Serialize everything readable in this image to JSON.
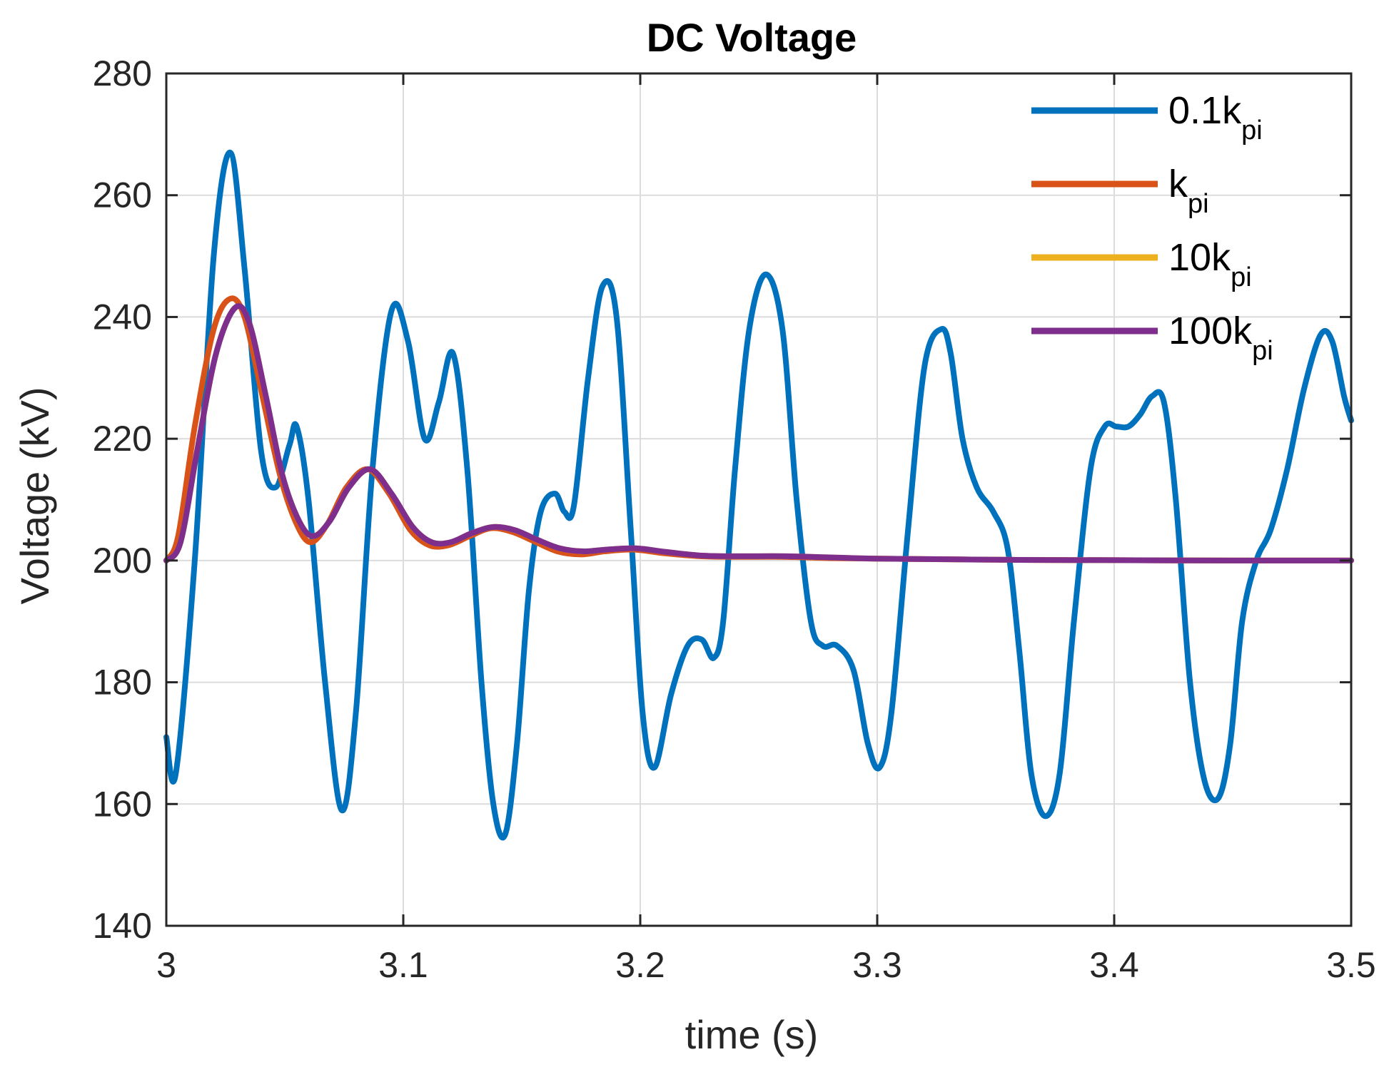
{
  "chart_data": {
    "type": "line",
    "title": "DC Voltage",
    "xlabel": "time (s)",
    "ylabel": "Voltage (kV)",
    "xlim": [
      3,
      3.5
    ],
    "ylim": [
      140,
      280
    ],
    "xticks": [
      3,
      3.1,
      3.2,
      3.3,
      3.4,
      3.5
    ],
    "xtick_labels": [
      "3",
      "3.1",
      "3.2",
      "3.3",
      "3.4",
      "3.5"
    ],
    "yticks": [
      140,
      160,
      180,
      200,
      220,
      240,
      260,
      280
    ],
    "ytick_labels": [
      "140",
      "160",
      "180",
      "200",
      "220",
      "240",
      "260",
      "280"
    ],
    "grid": true,
    "legend_position": "top-right",
    "series": [
      {
        "name": "0.1k_pi",
        "label_main": "0.1k",
        "label_sub": "pi",
        "color": "#0072BD",
        "x": [
          3.0,
          3.004,
          3.012,
          3.02,
          3.027,
          3.033,
          3.04,
          3.046,
          3.052,
          3.055,
          3.06,
          3.067,
          3.074,
          3.08,
          3.087,
          3.095,
          3.102,
          3.109,
          3.115,
          3.121,
          3.127,
          3.133,
          3.138,
          3.143,
          3.148,
          3.153,
          3.158,
          3.164,
          3.168,
          3.172,
          3.178,
          3.184,
          3.19,
          3.196,
          3.201,
          3.206,
          3.213,
          3.22,
          3.226,
          3.231,
          3.235,
          3.24,
          3.246,
          3.253,
          3.26,
          3.266,
          3.272,
          3.277,
          3.283,
          3.29,
          3.296,
          3.301,
          3.306,
          3.313,
          3.32,
          3.327,
          3.331,
          3.336,
          3.342,
          3.349,
          3.355,
          3.36,
          3.365,
          3.371,
          3.377,
          3.383,
          3.39,
          3.396,
          3.401,
          3.406,
          3.411,
          3.416,
          3.421,
          3.426,
          3.432,
          3.438,
          3.444,
          3.449,
          3.454,
          3.46,
          3.466,
          3.473,
          3.48,
          3.487,
          3.492,
          3.497,
          3.5
        ],
        "values": [
          171,
          165,
          200,
          250,
          267,
          248,
          218,
          212,
          219,
          222,
          210,
          180,
          159,
          175,
          215,
          241,
          236,
          220,
          226,
          234,
          215,
          180,
          160,
          155,
          170,
          195,
          208,
          211,
          208,
          209,
          230,
          245,
          240,
          205,
          175,
          166,
          178,
          186,
          187,
          184,
          190,
          215,
          238,
          247,
          238,
          210,
          190,
          186,
          186,
          182,
          170,
          166,
          175,
          205,
          232,
          238,
          234,
          220,
          212,
          208,
          202,
          185,
          165,
          158,
          165,
          190,
          215,
          222,
          222,
          222,
          224,
          227,
          226,
          210,
          180,
          164,
          161,
          170,
          190,
          200,
          205,
          215,
          228,
          237,
          236,
          227,
          223
        ]
      },
      {
        "name": "k_pi",
        "label_main": "k",
        "label_sub": "pi",
        "color": "#D95319",
        "x": [
          3.0,
          3.005,
          3.012,
          3.02,
          3.027,
          3.033,
          3.04,
          3.048,
          3.055,
          3.061,
          3.068,
          3.076,
          3.085,
          3.094,
          3.103,
          3.111,
          3.119,
          3.128,
          3.137,
          3.146,
          3.155,
          3.165,
          3.175,
          3.185,
          3.197,
          3.21,
          3.225,
          3.24,
          3.26,
          3.28,
          3.3,
          3.33,
          3.36,
          3.4,
          3.45,
          3.5
        ],
        "values": [
          200,
          204,
          222,
          238,
          243,
          240,
          228,
          214,
          206,
          203,
          206,
          212,
          215,
          211,
          205,
          202.5,
          202.5,
          204,
          205.3,
          204.7,
          203.2,
          201.5,
          201,
          201.5,
          201.8,
          201.2,
          200.7,
          200.6,
          200.6,
          200.4,
          200.3,
          200.2,
          200.1,
          200.05,
          200,
          200
        ]
      },
      {
        "name": "10k_pi",
        "label_main": "10k",
        "label_sub": "pi",
        "color": "#EDB120",
        "x": [
          3.0,
          3.006,
          3.013,
          3.021,
          3.029,
          3.035,
          3.042,
          3.049,
          3.056,
          3.062,
          3.069,
          3.077,
          3.086,
          3.095,
          3.104,
          3.112,
          3.12,
          3.129,
          3.138,
          3.147,
          3.156,
          3.166,
          3.176,
          3.186,
          3.198,
          3.211,
          3.226,
          3.241,
          3.261,
          3.281,
          3.3,
          3.33,
          3.36,
          3.4,
          3.45,
          3.5
        ],
        "values": [
          200,
          203,
          218,
          234,
          241.5,
          239,
          227,
          214,
          206.5,
          204,
          206.5,
          212,
          215,
          211,
          205.5,
          203,
          203,
          204.5,
          205.5,
          205,
          203.5,
          202,
          201.5,
          201.8,
          202,
          201.4,
          200.8,
          200.7,
          200.7,
          200.5,
          200.3,
          200.2,
          200.1,
          200.05,
          200,
          200
        ]
      },
      {
        "name": "100k_pi",
        "label_main": "100k",
        "label_sub": "pi",
        "color": "#7E2F8E",
        "x": [
          3.0,
          3.006,
          3.013,
          3.021,
          3.029,
          3.035,
          3.042,
          3.049,
          3.056,
          3.062,
          3.069,
          3.077,
          3.086,
          3.095,
          3.104,
          3.112,
          3.12,
          3.129,
          3.138,
          3.147,
          3.156,
          3.166,
          3.176,
          3.186,
          3.198,
          3.211,
          3.226,
          3.241,
          3.261,
          3.281,
          3.3,
          3.33,
          3.36,
          3.4,
          3.45,
          3.5
        ],
        "values": [
          200,
          203,
          218,
          234,
          241.5,
          239,
          227,
          214,
          206.5,
          204,
          206.5,
          212,
          215,
          211,
          205.5,
          203,
          203,
          204.5,
          205.5,
          205,
          203.5,
          202,
          201.5,
          201.8,
          202,
          201.4,
          200.8,
          200.7,
          200.7,
          200.5,
          200.3,
          200.2,
          200.1,
          200.05,
          200,
          200
        ]
      }
    ]
  }
}
